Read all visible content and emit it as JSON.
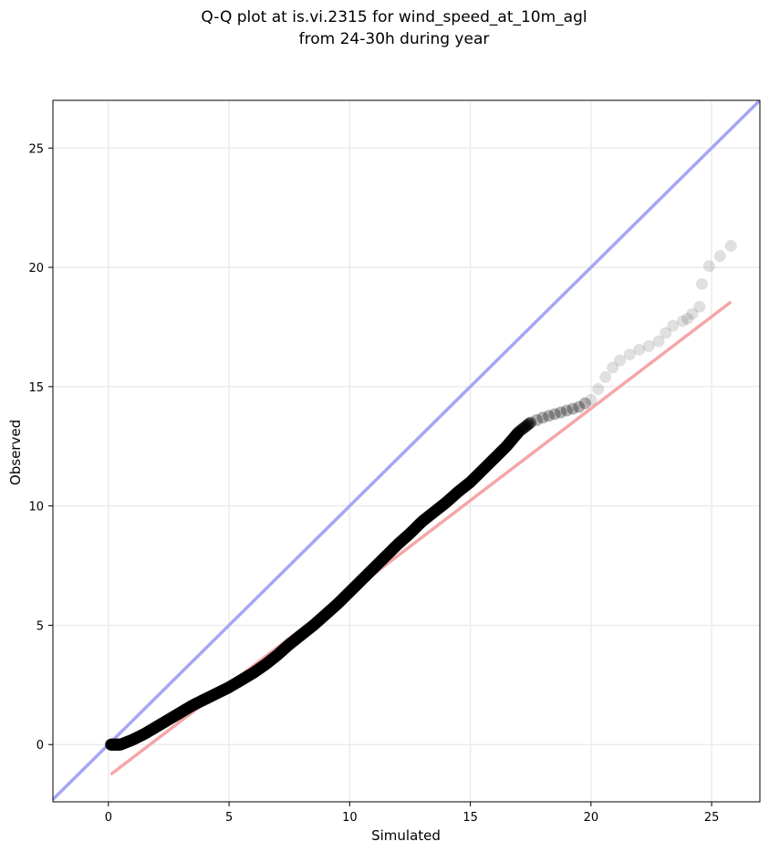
{
  "chart_data": {
    "type": "scatter",
    "title_lines": [
      "Q-Q plot at is.vi.2315 for wind_speed_at_10m_agl",
      "from 24-30h during year"
    ],
    "xlabel": "Simulated",
    "ylabel": "Observed",
    "xlim": [
      -2.3,
      27.0
    ],
    "ylim": [
      -2.4,
      27.0
    ],
    "xticks": [
      0,
      5,
      10,
      15,
      20,
      25
    ],
    "yticks": [
      0,
      5,
      10,
      15,
      20,
      25
    ],
    "grid": true,
    "reference_line": {
      "name": "1:1",
      "color": "#a6a6f5",
      "points": [
        [
          -2.3,
          -2.3
        ],
        [
          27.0,
          27.0
        ]
      ]
    },
    "fit_line": {
      "color": "#f5a6a6",
      "points": [
        [
          0.1,
          -1.25
        ],
        [
          25.8,
          18.55
        ]
      ]
    },
    "point_color": "#000000",
    "quantiles": {
      "x": [
        0.1,
        0.3,
        0.5,
        1.0,
        1.5,
        2.0,
        2.5,
        3.0,
        3.5,
        4.0,
        4.5,
        5.0,
        5.5,
        6.0,
        6.5,
        7.0,
        7.5,
        8.0,
        8.5,
        9.0,
        9.5,
        10.0,
        10.5,
        11.0,
        11.5,
        12.0,
        12.5,
        13.0,
        13.5,
        14.0,
        14.5,
        15.0,
        15.5,
        16.0,
        16.5,
        17.0,
        17.5,
        18.0,
        18.5,
        19.0,
        19.5,
        20.0,
        20.3,
        20.6,
        20.9,
        21.2,
        21.6,
        22.0,
        22.4,
        22.8,
        23.1,
        23.4,
        23.8,
        24.0,
        24.2,
        24.5,
        24.6,
        24.9,
        25.8
      ],
      "y": [
        0.0,
        0.0,
        0.0,
        0.2,
        0.45,
        0.75,
        1.05,
        1.35,
        1.65,
        1.9,
        2.15,
        2.4,
        2.7,
        3.0,
        3.35,
        3.75,
        4.2,
        4.6,
        5.0,
        5.45,
        5.9,
        6.4,
        6.9,
        7.4,
        7.9,
        8.4,
        8.85,
        9.35,
        9.75,
        10.15,
        10.6,
        11.0,
        11.5,
        12.0,
        12.5,
        13.1,
        13.5,
        13.7,
        13.85,
        14.0,
        14.15,
        14.45,
        14.9,
        15.4,
        15.8,
        16.1,
        16.35,
        16.55,
        16.7,
        16.9,
        17.25,
        17.55,
        17.75,
        17.85,
        18.05,
        18.35,
        19.3,
        20.05,
        20.9
      ]
    }
  }
}
